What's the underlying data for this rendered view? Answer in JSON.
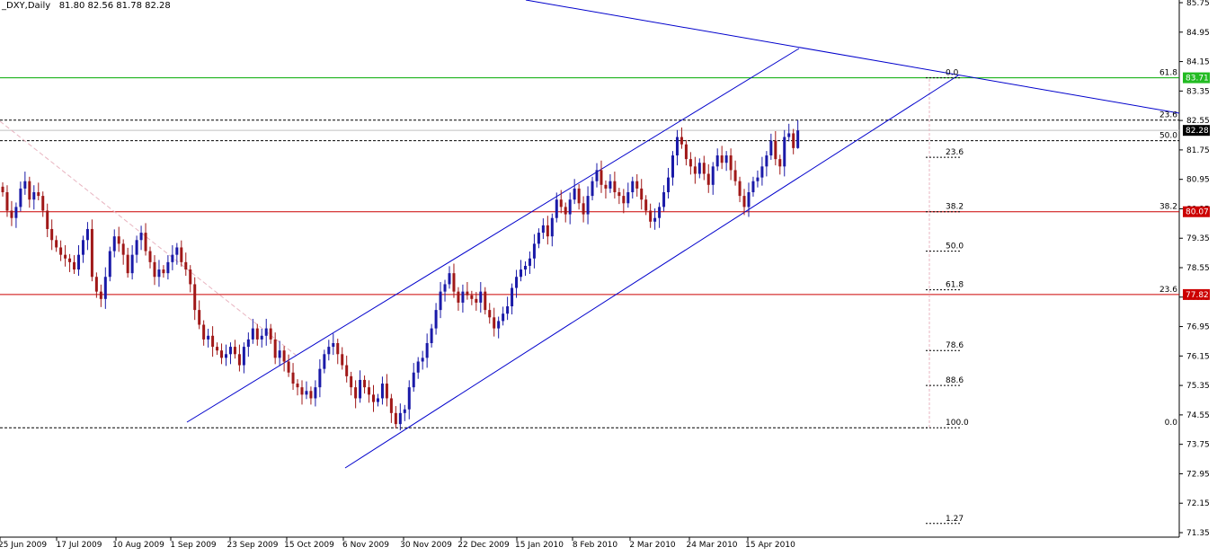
{
  "header": {
    "symbol": "_DXY,Daily",
    "ohlc": "81.80 82.56 81.78 82.28"
  },
  "colors": {
    "up": "#1a1aa8",
    "down": "#a01818",
    "trend": "#0000cc",
    "green_line": "#00aa00",
    "red_line": "#cc0000",
    "tag_green": "#22bb22",
    "tag_red": "#cc0000",
    "tag_black": "#000000"
  },
  "price_tags": [
    {
      "text": "83.71",
      "price": 83.71,
      "style": "green"
    },
    {
      "text": "82.28",
      "price": 82.28,
      "style": "black"
    },
    {
      "text": "80.07",
      "price": 80.07,
      "style": "red"
    },
    {
      "text": "77.82",
      "price": 77.82,
      "style": "red"
    }
  ],
  "fib_right": [
    {
      "text": "61.8",
      "price": 83.71
    },
    {
      "text": "23.6",
      "price": 82.56
    },
    {
      "text": "50.0",
      "price": 82.0
    },
    {
      "text": "38.2",
      "price": 80.07
    },
    {
      "text": "23.6",
      "price": 77.82
    },
    {
      "text": "0.0",
      "price": 74.2
    }
  ],
  "fib_mid": [
    {
      "text": "0.0",
      "price": 83.71
    },
    {
      "text": "23.6",
      "price": 81.55
    },
    {
      "text": "38.2",
      "price": 80.07
    },
    {
      "text": "50.0",
      "price": 79.0
    },
    {
      "text": "61.8",
      "price": 77.95
    },
    {
      "text": "78.6",
      "price": 76.3
    },
    {
      "text": "88.6",
      "price": 75.35
    },
    {
      "text": "100.0",
      "price": 74.2
    },
    {
      "text": "1.27",
      "price": 71.6
    }
  ],
  "chart_data": {
    "type": "candlestick",
    "title": "_DXY,Daily",
    "y_ticks": [
      "85.75",
      "84.95",
      "84.15",
      "83.35",
      "82.55",
      "81.75",
      "80.95",
      "80.15",
      "79.35",
      "78.55",
      "77.75",
      "76.95",
      "76.15",
      "75.35",
      "74.55",
      "73.75",
      "72.95",
      "72.15",
      "71.35"
    ],
    "ylim": [
      71.1,
      85.85
    ],
    "x_labels": [
      "25 Jun 2009",
      "17 Jul 2009",
      "10 Aug 2009",
      "1 Sep 2009",
      "23 Sep 2009",
      "15 Oct 2009",
      "6 Nov 2009",
      "30 Nov 2009",
      "22 Dec 2009",
      "15 Jan 2010",
      "8 Feb 2010",
      "2 Mar 2010",
      "24 Mar 2010",
      "15 Apr 2010"
    ],
    "last": {
      "open": 81.8,
      "high": 82.56,
      "low": 81.78,
      "close": 82.28
    },
    "horizontal_levels": [
      83.71,
      82.56,
      82.0,
      80.07,
      77.82,
      74.2
    ],
    "closes": [
      80.6,
      80.1,
      79.9,
      80.2,
      80.7,
      80.9,
      80.4,
      80.6,
      80.5,
      80.1,
      79.6,
      79.3,
      79.1,
      78.9,
      78.8,
      78.7,
      78.5,
      78.9,
      79.3,
      79.6,
      78.3,
      77.9,
      77.7,
      78.3,
      79.0,
      79.4,
      79.2,
      78.9,
      78.4,
      78.9,
      79.3,
      79.5,
      79.0,
      78.7,
      78.3,
      78.5,
      78.4,
      78.7,
      78.9,
      79.1,
      78.7,
      78.5,
      78.1,
      77.4,
      77.0,
      76.6,
      76.7,
      76.4,
      76.3,
      76.1,
      76.2,
      76.4,
      76.2,
      75.9,
      76.4,
      76.6,
      76.9,
      76.6,
      76.7,
      76.9,
      76.6,
      76.1,
      76.3,
      76.0,
      75.7,
      75.4,
      75.3,
      75.1,
      75.2,
      75.0,
      75.3,
      75.8,
      76.2,
      76.4,
      76.5,
      76.2,
      75.9,
      75.6,
      75.3,
      75.0,
      75.5,
      75.3,
      75.1,
      74.9,
      75.0,
      75.4,
      75.0,
      74.6,
      74.3,
      74.6,
      74.7,
      75.3,
      75.7,
      76.0,
      76.1,
      76.5,
      76.9,
      77.4,
      77.9,
      78.1,
      78.4,
      77.9,
      77.6,
      77.9,
      77.8,
      77.7,
      77.6,
      77.9,
      77.4,
      77.2,
      76.9,
      77.1,
      77.3,
      77.5,
      78.0,
      78.3,
      78.5,
      78.6,
      78.8,
      79.2,
      79.5,
      79.7,
      79.4,
      79.9,
      80.4,
      80.2,
      80.0,
      80.4,
      80.7,
      80.3,
      80.0,
      80.5,
      80.9,
      81.2,
      80.8,
      80.7,
      80.9,
      80.6,
      80.5,
      80.3,
      80.6,
      80.9,
      80.7,
      80.4,
      80.1,
      79.8,
      79.9,
      80.2,
      80.6,
      81.0,
      81.6,
      82.1,
      81.9,
      81.5,
      81.3,
      81.1,
      81.4,
      81.1,
      80.8,
      81.3,
      81.6,
      81.4,
      81.6,
      81.2,
      80.9,
      80.5,
      80.2,
      80.6,
      80.9,
      81.0,
      81.3,
      81.6,
      82.0,
      81.5,
      81.3,
      82.1,
      82.2,
      81.8,
      82.28
    ]
  }
}
